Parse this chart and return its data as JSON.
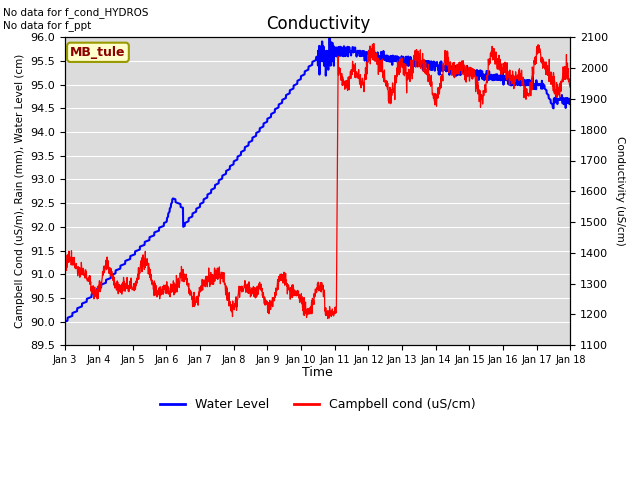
{
  "title": "Conductivity",
  "ylabel_left": "Campbell Cond (uS/m), Rain (mm), Water Level (cm)",
  "ylabel_right": "Conductivity (uS/cm)",
  "xlabel": "Time",
  "annotation_text": "No data for f_cond_HYDROS\nNo data for f_ppt",
  "box_label": "MB_tule",
  "ylim_left": [
    89.5,
    96.0
  ],
  "ylim_right": [
    1100,
    2100
  ],
  "background_color": "#dcdcdc",
  "legend_entries": [
    "Water Level",
    "Campbell cond (uS/cm)"
  ],
  "legend_colors": [
    "blue",
    "red"
  ],
  "water_level_color": "blue",
  "campbell_color": "red",
  "xtick_labels": [
    "Jan 3",
    "Jan 4",
    "Jan 5",
    "Jan 6",
    "Jan 7",
    "Jan 8",
    "Jan 9",
    "Jan 10",
    "Jan 11",
    "Jan 12",
    "Jan 13",
    "Jan 14",
    "Jan 15",
    "Jan 16",
    "Jan 17",
    "Jan 18"
  ],
  "num_days": 16
}
